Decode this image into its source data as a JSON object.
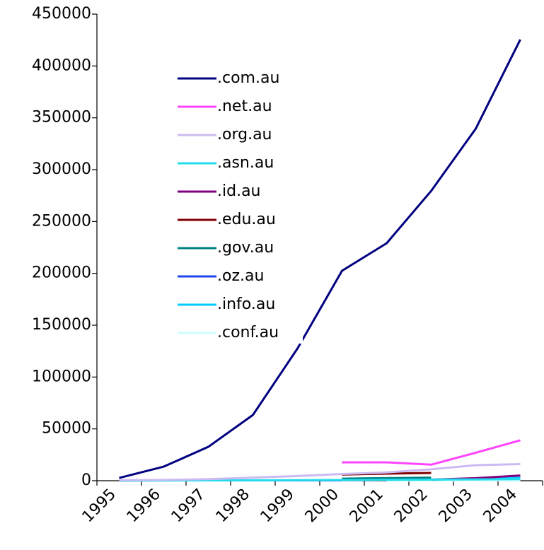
{
  "chart_data": {
    "type": "line",
    "categories": [
      "1995",
      "1996",
      "1997",
      "1998",
      "1999",
      "2000",
      "2001",
      "2002",
      "2003",
      "2004"
    ],
    "series": [
      {
        "name": ".com.au",
        "color": "#000080",
        "values": [
          2700,
          13600,
          32700,
          63400,
          127500,
          202500,
          229000,
          279500,
          339500,
          425500
        ]
      },
      {
        "name": ".net.au",
        "color": "#ff44ff",
        "values": [
          null,
          null,
          null,
          null,
          null,
          17700,
          17700,
          15500,
          27000,
          39000
        ]
      },
      {
        "name": ".org.au",
        "color": "#ccbbf2",
        "values": [
          500,
          800,
          1500,
          3000,
          4500,
          6500,
          8000,
          11000,
          15000,
          16000
        ]
      },
      {
        "name": ".asn.au",
        "color": "#22ddee",
        "values": [
          100,
          200,
          300,
          400,
          500,
          700,
          900,
          1100,
          1300,
          1500
        ]
      },
      {
        "name": ".id.au",
        "color": "#800080",
        "values": [
          null,
          null,
          null,
          null,
          null,
          null,
          null,
          1000,
          2500,
          5000
        ]
      },
      {
        "name": ".edu.au",
        "color": "#800000",
        "values": [
          null,
          null,
          null,
          null,
          null,
          6000,
          6800,
          7500,
          null,
          null
        ]
      },
      {
        "name": ".gov.au",
        "color": "#008080",
        "values": [
          null,
          null,
          null,
          null,
          null,
          2000,
          2500,
          3000,
          null,
          null
        ]
      },
      {
        "name": ".oz.au",
        "color": "#2244ee",
        "values": [
          200,
          300,
          300,
          300,
          300,
          300,
          null,
          null,
          null,
          null
        ]
      },
      {
        "name": ".info.au",
        "color": "#00ccff",
        "values": [
          null,
          null,
          null,
          null,
          null,
          null,
          null,
          1000,
          2000,
          3000
        ]
      },
      {
        "name": ".conf.au",
        "color": "#ccffff",
        "values": [
          null,
          null,
          null,
          null,
          null,
          null,
          100,
          200,
          300,
          400
        ]
      }
    ],
    "ylim": [
      0,
      450000
    ],
    "yticks": [
      0,
      50000,
      100000,
      150000,
      200000,
      250000,
      300000,
      350000,
      400000,
      450000
    ],
    "grid": false
  }
}
